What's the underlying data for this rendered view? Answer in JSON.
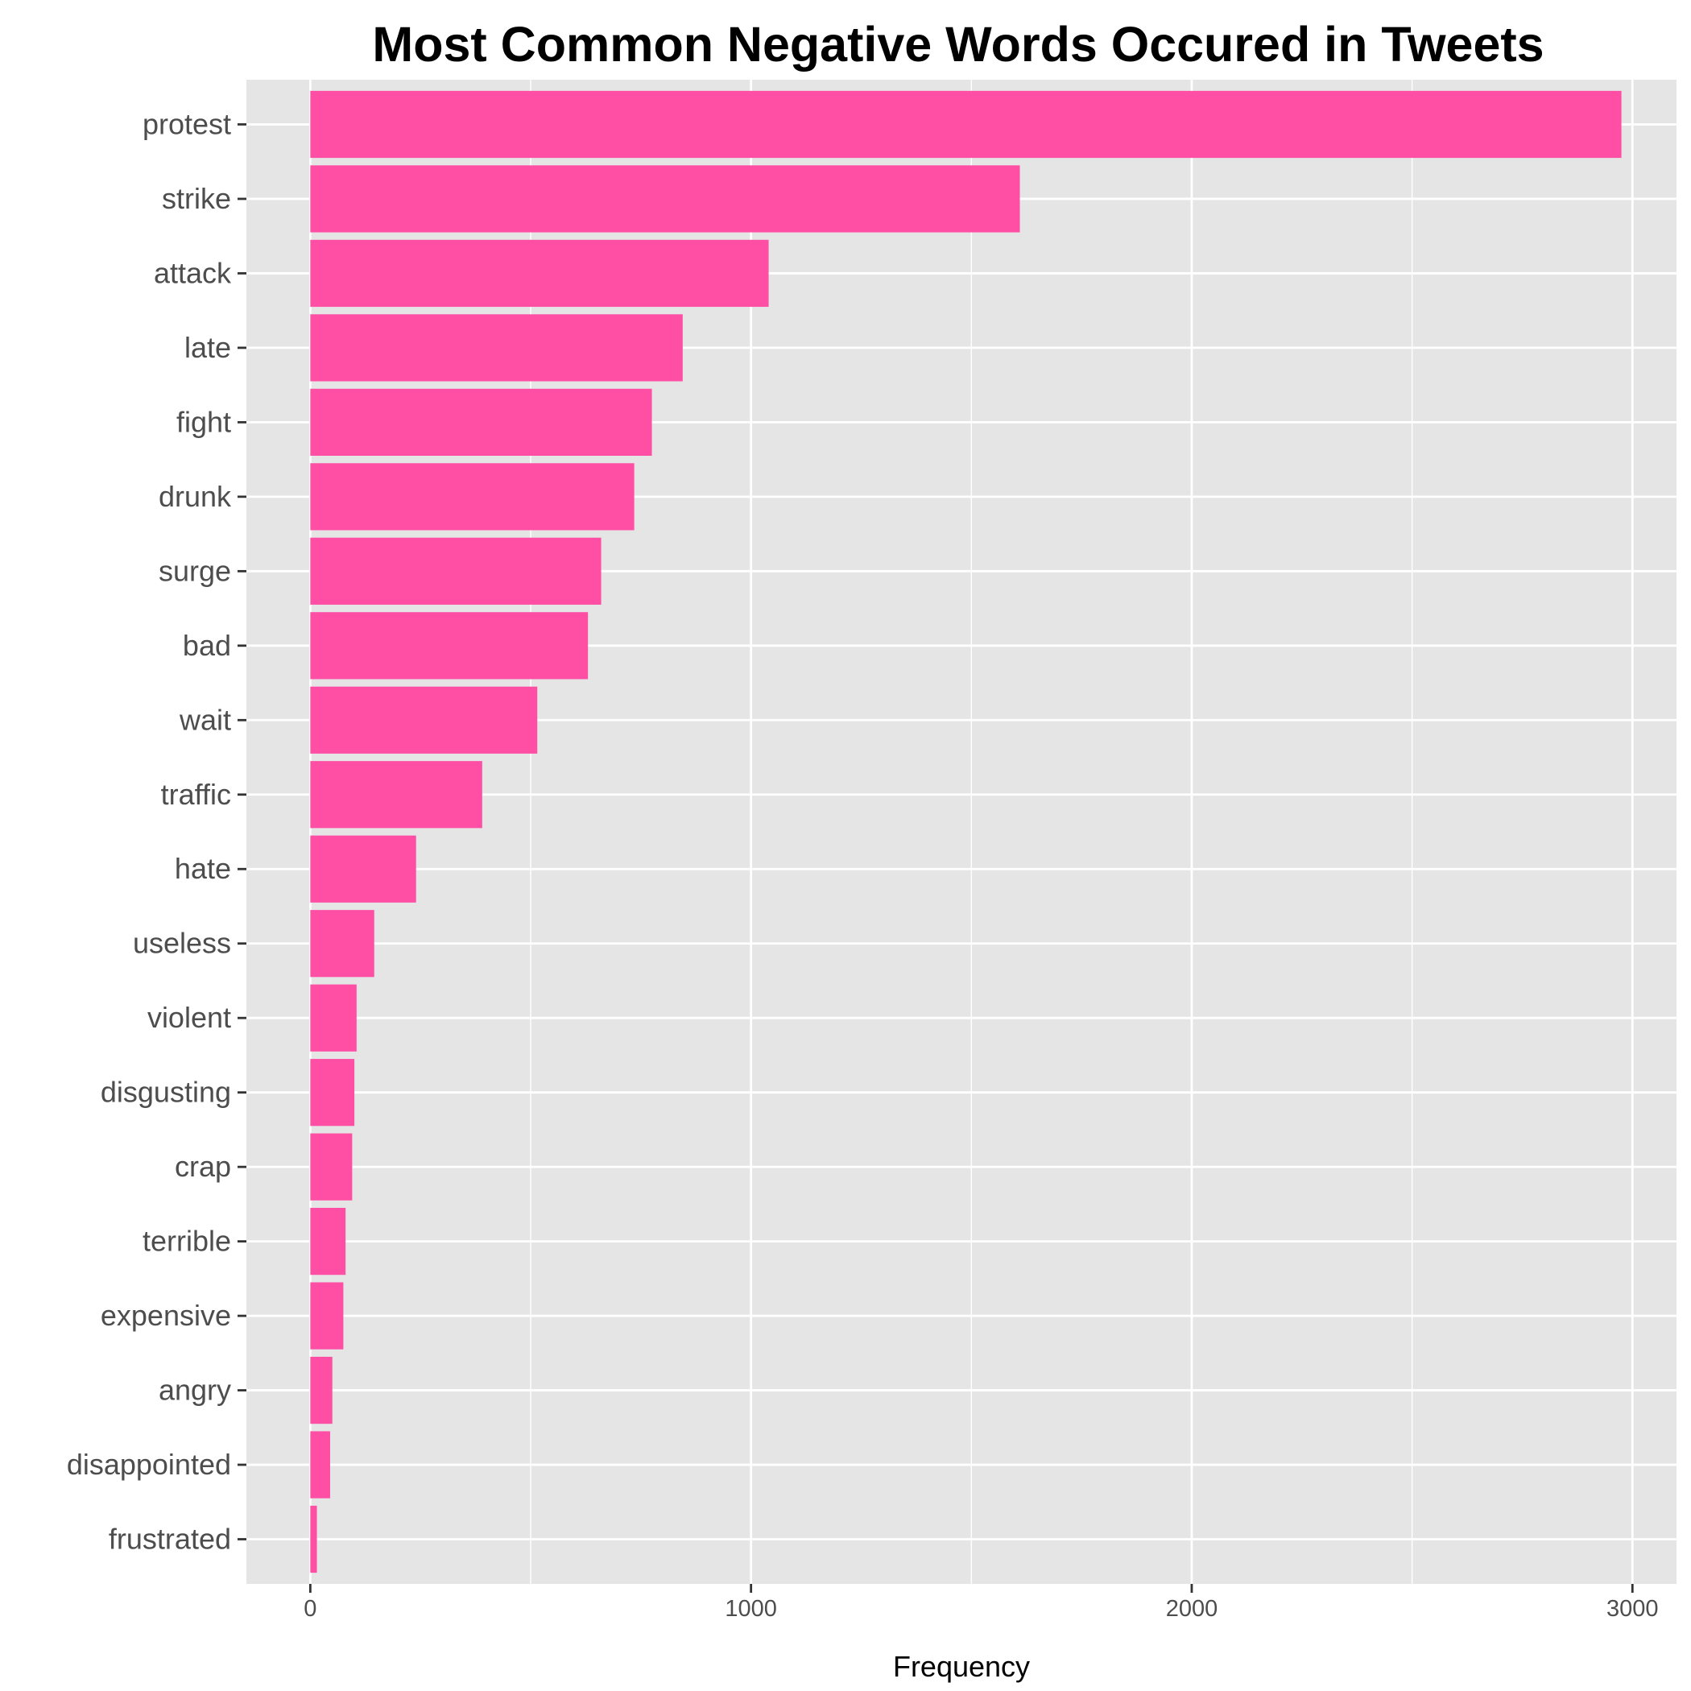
{
  "chart_data": {
    "type": "bar",
    "orientation": "horizontal",
    "title": "Most Common Negative Words Occured in Tweets",
    "xlabel": "Frequency",
    "ylabel": "",
    "categories": [
      "protest",
      "strike",
      "attack",
      "late",
      "fight",
      "drunk",
      "surge",
      "bad",
      "wait",
      "traffic",
      "hate",
      "useless",
      "violent",
      "disgusting",
      "crap",
      "terrible",
      "expensive",
      "angry",
      "disappointed",
      "frustrated"
    ],
    "values": [
      2975,
      1610,
      1040,
      845,
      775,
      735,
      660,
      630,
      515,
      390,
      240,
      145,
      105,
      100,
      95,
      80,
      75,
      50,
      45,
      15
    ],
    "xlim": [
      -145,
      3100
    ],
    "xticks": [
      0,
      1000,
      2000,
      3000
    ],
    "xtick_labels": [
      "0",
      "1000",
      "2000",
      "3000"
    ],
    "bar_color": "#ff4fa5",
    "panel_background": "#e5e5e5",
    "grid_color": "#ffffff",
    "grid": true,
    "legend": "none"
  }
}
